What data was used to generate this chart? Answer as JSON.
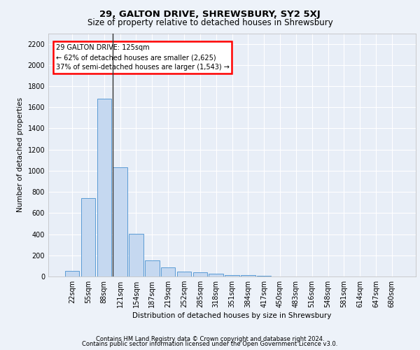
{
  "title1": "29, GALTON DRIVE, SHREWSBURY, SY2 5XJ",
  "title2": "Size of property relative to detached houses in Shrewsbury",
  "xlabel": "Distribution of detached houses by size in Shrewsbury",
  "ylabel": "Number of detached properties",
  "footer1": "Contains HM Land Registry data © Crown copyright and database right 2024.",
  "footer2": "Contains public sector information licensed under the Open Government Licence v3.0.",
  "annotation_title": "29 GALTON DRIVE: 125sqm",
  "annotation_line1": "← 62% of detached houses are smaller (2,625)",
  "annotation_line2": "37% of semi-detached houses are larger (1,543) →",
  "bar_color": "#c5d8f0",
  "bar_edge_color": "#5b9bd5",
  "marker_color": "#333333",
  "ylim": [
    0,
    2300
  ],
  "yticks": [
    0,
    200,
    400,
    600,
    800,
    1000,
    1200,
    1400,
    1600,
    1800,
    2000,
    2200
  ],
  "bin_labels": [
    "22sqm",
    "55sqm",
    "88sqm",
    "121sqm",
    "154sqm",
    "187sqm",
    "219sqm",
    "252sqm",
    "285sqm",
    "318sqm",
    "351sqm",
    "384sqm",
    "417sqm",
    "450sqm",
    "483sqm",
    "516sqm",
    "548sqm",
    "581sqm",
    "614sqm",
    "647sqm",
    "680sqm"
  ],
  "bar_values": [
    55,
    740,
    1680,
    1030,
    405,
    150,
    83,
    47,
    40,
    28,
    15,
    10,
    5,
    2,
    1,
    1,
    1,
    0,
    0,
    0,
    0
  ],
  "marker_bin_index": 3,
  "bg_color": "#edf2f9",
  "plot_bg": "#e8eef7",
  "grid_color": "#ffffff",
  "title1_fontsize": 9.5,
  "title2_fontsize": 8.5,
  "xlabel_fontsize": 7.5,
  "ylabel_fontsize": 7.5,
  "tick_fontsize": 7,
  "ann_fontsize": 7,
  "footer_fontsize": 6
}
